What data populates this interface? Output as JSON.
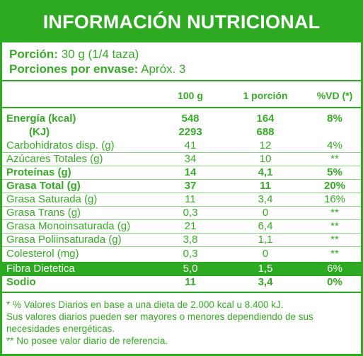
{
  "title": "INFORMACIÓN NUTRICIONAL",
  "portion": {
    "serving_label": "Porción:",
    "serving_value": "30 g (1/4 taza)",
    "servings_label": "Porciones por envase:",
    "servings_value": "Apróx. 3"
  },
  "columns": [
    "100 g",
    "1 porción",
    "%VD (*)"
  ],
  "rows": [
    {
      "name": "Energía (kcal)",
      "v100": "548",
      "vpor": "164",
      "vd": "8%",
      "bold": true
    },
    {
      "name": "(KJ)",
      "v100": "2293",
      "vpor": "688",
      "vd": "",
      "bold": true
    },
    {
      "name": "Carbohidratos disp. (g)",
      "v100": "41",
      "vpor": "12",
      "vd": "4%",
      "bold": false
    },
    {
      "name": "Azúcares Totales (g)",
      "v100": "34",
      "vpor": "10",
      "vd": "**",
      "bold": false
    },
    {
      "name": "Proteínas (g)",
      "v100": "14",
      "vpor": "4,1",
      "vd": "5%",
      "bold": true
    },
    {
      "name": "Grasa Total (g)",
      "v100": "37",
      "vpor": "11",
      "vd": "20%",
      "bold": true
    },
    {
      "name": "Grasa Saturada (g)",
      "v100": "11",
      "vpor": "3,4",
      "vd": "16%",
      "bold": false
    },
    {
      "name": "Grasa Trans (g)",
      "v100": "0,3",
      "vpor": "0",
      "vd": "**",
      "bold": false
    },
    {
      "name": "Grasa Monoinsaturada (g)",
      "v100": "21",
      "vpor": "6,4",
      "vd": "**",
      "bold": false
    },
    {
      "name": "Grasa Poliinsaturada (g)",
      "v100": "3,8",
      "vpor": "1,1",
      "vd": "**",
      "bold": false
    },
    {
      "name": "Colesterol (mg)",
      "v100": "0,3",
      "vpor": "0",
      "vd": "**",
      "bold": false
    },
    {
      "name": "Fibra Dietetica",
      "v100": "5,0",
      "vpor": "1,5",
      "vd": "6%",
      "bold": false,
      "highlight": true
    },
    {
      "name": "Sodio",
      "v100": "11",
      "vpor": "3,4",
      "vd": "0%",
      "bold": true
    }
  ],
  "footnotes": [
    "* % Valores Diarios en base a una dieta de 2.000 kcal u 8.400 kJ.",
    "Sus valores diarios pueden ser mayores o menores dependiendo de sus necesidades energéticas.",
    "** No posee valor diario de referencia."
  ],
  "colors": {
    "accent": "#2eaa22",
    "text": "#3aa82a"
  }
}
